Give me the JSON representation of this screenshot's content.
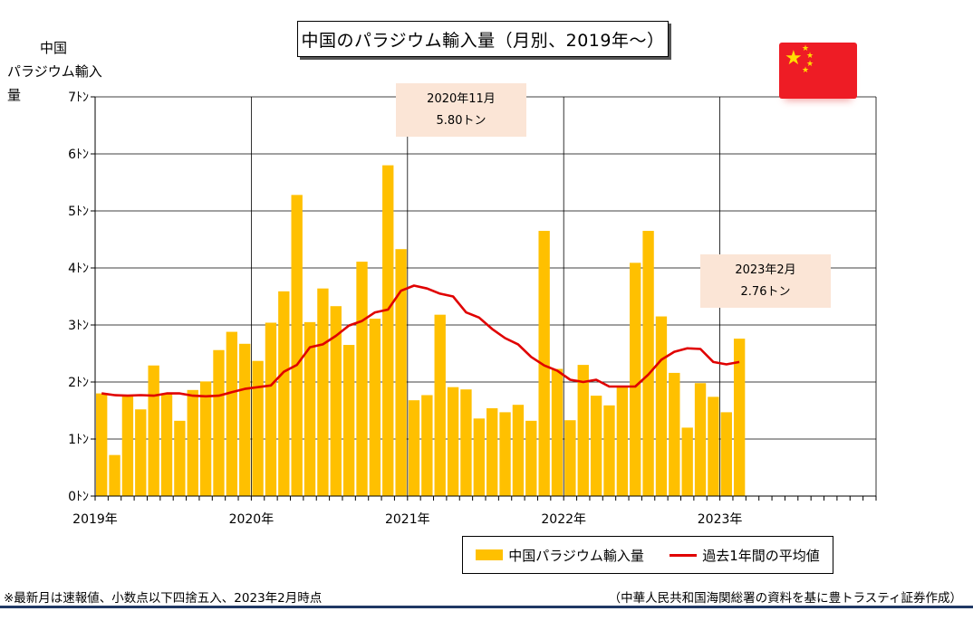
{
  "title": "中国のパラジウム輸入量（月別、2019年～）",
  "y_axis_title": [
    "中国",
    "パラジウム輸入量"
  ],
  "footnote_left": "※最新月は速報値、小数点以下四捨五入、2023年2月時点",
  "footnote_right": "（中華人民共和国海関総署の資料を基に豊トラスティ証券作成）",
  "callouts": [
    {
      "line1": "2020年11月",
      "line2": "5.80トン"
    },
    {
      "line1": "2023年2月",
      "line2": "2.76トン"
    }
  ],
  "legend": {
    "bar": "中国パラジウム輸入量",
    "line": "過去1年間の平均値"
  },
  "flag": {
    "icon": "china-flag-icon",
    "color": "#ee1c25",
    "star_color": "#ffde00"
  },
  "chart_data": {
    "type": "bar",
    "x_start": "2019-01",
    "x_end": "2023-12",
    "xtick_labels": [
      "2019年",
      "2020年",
      "2021年",
      "2022年",
      "2023年"
    ],
    "ytick_labels": [
      "0ﾄﾝ",
      "1ﾄﾝ",
      "2ﾄﾝ",
      "3ﾄﾝ",
      "4ﾄﾝ",
      "5ﾄﾝ",
      "6ﾄﾝ",
      "7ﾄﾝ"
    ],
    "ylim": [
      0,
      7
    ],
    "grid": true,
    "legend_position": "bottom-right",
    "series": [
      {
        "name": "中国パラジウム輸入量",
        "type": "bar",
        "color": "#ffc000",
        "values": [
          1.8,
          0.72,
          1.75,
          1.52,
          2.29,
          1.8,
          1.32,
          1.86,
          2.01,
          2.56,
          2.88,
          2.67,
          2.37,
          3.04,
          3.59,
          5.28,
          3.05,
          3.64,
          3.33,
          2.65,
          4.11,
          3.11,
          5.8,
          4.33,
          1.68,
          1.77,
          3.18,
          1.91,
          1.87,
          1.36,
          1.54,
          1.47,
          1.6,
          1.32,
          4.65,
          2.23,
          1.33,
          2.3,
          1.76,
          1.59,
          1.91,
          4.09,
          4.65,
          3.15,
          2.16,
          1.2,
          1.98,
          1.74,
          1.47,
          2.76
        ]
      },
      {
        "name": "過去1年間の平均値",
        "type": "line",
        "color": "#e00000",
        "values": [
          1.8,
          1.77,
          1.76,
          1.77,
          1.76,
          1.8,
          1.8,
          1.76,
          1.75,
          1.76,
          1.82,
          1.88,
          1.91,
          1.94,
          2.18,
          2.3,
          2.61,
          2.66,
          2.81,
          2.99,
          3.07,
          3.22,
          3.27,
          3.6,
          3.69,
          3.64,
          3.55,
          3.5,
          3.22,
          3.13,
          2.93,
          2.77,
          2.66,
          2.44,
          2.29,
          2.2,
          2.04,
          2.0,
          2.04,
          1.92,
          1.92,
          1.92,
          2.13,
          2.39,
          2.53,
          2.59,
          2.58,
          2.35,
          2.31,
          2.35
        ]
      }
    ]
  }
}
